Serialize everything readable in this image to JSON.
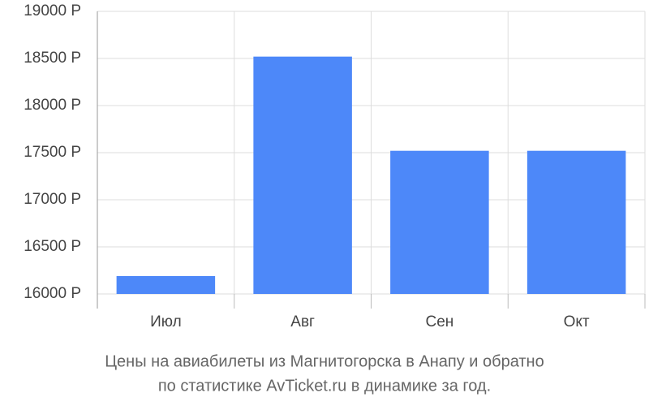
{
  "chart_data": {
    "type": "bar",
    "title": "Цены на авиабилеты из Магнитогорска в Анапу и обратно",
    "subtitle": "по статистике AvTicket.ru в динамике за год.",
    "categories": [
      "Июл",
      "Авг",
      "Сен",
      "Окт"
    ],
    "values": [
      16190,
      18520,
      17520,
      17520
    ],
    "color": "#4d88f9",
    "ylim": [
      15845,
      19000
    ],
    "yticks": [
      {
        "value": 16000,
        "label": "16000 Р"
      },
      {
        "value": 16500,
        "label": "16500 Р"
      },
      {
        "value": 17000,
        "label": "17000 Р"
      },
      {
        "value": 17500,
        "label": "17500 Р"
      },
      {
        "value": 18000,
        "label": "18000 Р"
      },
      {
        "value": 18500,
        "label": "18500 Р"
      },
      {
        "value": 19000,
        "label": "19000 Р"
      }
    ],
    "grid": true
  }
}
